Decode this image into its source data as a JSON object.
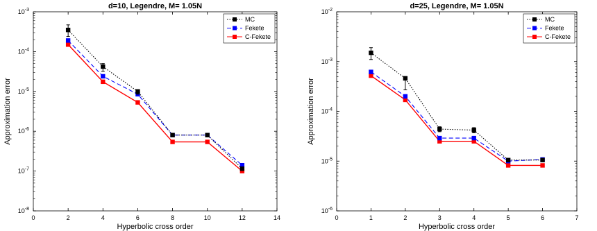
{
  "chart_data": [
    {
      "type": "line",
      "title": "d=10, Legendre, M= 1.05N",
      "xlabel": "Hyperbolic cross order",
      "ylabel": "Approximation error",
      "yscale": "log",
      "xlim": [
        0,
        14
      ],
      "ylim": [
        1e-08,
        0.001
      ],
      "xticks": [
        0,
        2,
        4,
        6,
        8,
        10,
        12,
        14
      ],
      "ytick_exponents": [
        -8,
        -7,
        -6,
        -5,
        -4,
        -3
      ],
      "legend": "top-right",
      "series": [
        {
          "name": "MC",
          "color": "#000000",
          "dash": "dotted",
          "x": [
            2,
            4,
            6,
            8,
            10,
            12
          ],
          "y": [
            0.00035,
            4.2e-05,
            1e-05,
            8e-07,
            8e-07,
            1.15e-07
          ],
          "err_low": [
            0.00024,
            3.2e-05,
            8.5e-06,
            7.2e-07,
            7.2e-07,
            1.05e-07
          ],
          "err_high": [
            0.00047,
            5e-05,
            1.1e-05,
            8.8e-07,
            8.8e-07,
            1.25e-07
          ]
        },
        {
          "name": "Fekete",
          "color": "#0000ff",
          "dash": "dashed",
          "x": [
            2,
            4,
            6,
            8,
            10,
            12
          ],
          "y": [
            0.00019,
            2.4e-05,
            8.5e-06,
            8e-07,
            8e-07,
            1.4e-07
          ]
        },
        {
          "name": "C-Fekete",
          "color": "#ff0000",
          "dash": "solid",
          "x": [
            2,
            4,
            6,
            8,
            10,
            12
          ],
          "y": [
            0.00015,
            1.75e-05,
            5.3e-06,
            5.4e-07,
            5.4e-07,
            1e-07
          ]
        }
      ]
    },
    {
      "type": "line",
      "title": "d=25, Legendre, M= 1.05N",
      "xlabel": "Hyperbolic cross order",
      "ylabel": "Approximation error",
      "yscale": "log",
      "xlim": [
        0,
        7
      ],
      "ylim": [
        1e-06,
        0.01
      ],
      "xticks": [
        0,
        1,
        2,
        3,
        4,
        5,
        6,
        7
      ],
      "ytick_exponents": [
        -6,
        -5,
        -4,
        -3,
        -2
      ],
      "legend": "top-right",
      "series": [
        {
          "name": "MC",
          "color": "#000000",
          "dash": "dotted",
          "x": [
            1,
            2,
            3,
            4,
            5,
            6
          ],
          "y": [
            0.0015,
            0.00046,
            4.4e-05,
            4.2e-05,
            1.05e-05,
            1.05e-05
          ],
          "err_low": [
            0.0011,
            0.00027,
            3.9e-05,
            3.7e-05,
            9.8e-06,
            9.8e-06
          ],
          "err_high": [
            0.0019,
            0.0005,
            4.9e-05,
            4.7e-05,
            1.12e-05,
            1.12e-05
          ]
        },
        {
          "name": "Fekete",
          "color": "#0000ff",
          "dash": "dashed",
          "x": [
            1,
            2,
            3,
            4,
            5,
            6
          ],
          "y": [
            0.00062,
            0.0002,
            2.9e-05,
            2.9e-05,
            1e-05,
            1.08e-05
          ]
        },
        {
          "name": "C-Fekete",
          "color": "#ff0000",
          "dash": "solid",
          "x": [
            1,
            2,
            3,
            4,
            5,
            6
          ],
          "y": [
            0.00052,
            0.00017,
            2.5e-05,
            2.5e-05,
            8.2e-06,
            8.2e-06
          ]
        }
      ]
    }
  ]
}
